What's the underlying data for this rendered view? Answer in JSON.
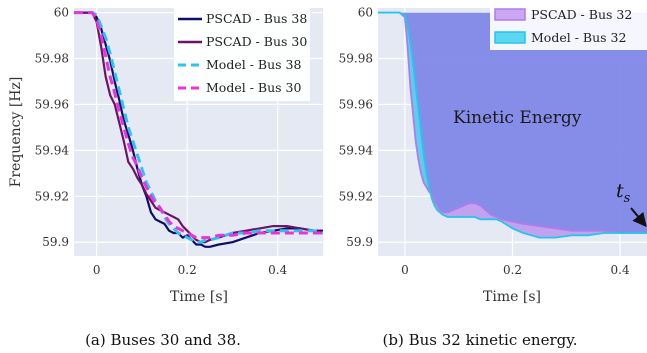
{
  "chart_data": [
    {
      "type": "line",
      "xlabel": "Time [s]",
      "ylabel": "Frequency [Hz]",
      "xlim": [
        -0.05,
        0.5
      ],
      "ylim": [
        59.894,
        60.002
      ],
      "xticks": [
        0,
        0.2,
        0.4
      ],
      "xtick_labels": [
        "0",
        "0.2",
        "0.4"
      ],
      "yticks": [
        59.9,
        59.92,
        59.94,
        59.96,
        59.98,
        60
      ],
      "ytick_labels": [
        "59.9",
        "59.92",
        "59.94",
        "59.96",
        "59.98",
        "60"
      ],
      "grid": true,
      "legend_position": "top-right",
      "caption": "(a) Buses 30 and 38.",
      "series": [
        {
          "name": "PSCAD - Bus 38",
          "color": "#0d0d6b",
          "style": "solid",
          "x": [
            -0.05,
            -0.01,
            0,
            0.01,
            0.02,
            0.03,
            0.04,
            0.05,
            0.06,
            0.07,
            0.08,
            0.09,
            0.1,
            0.11,
            0.12,
            0.13,
            0.14,
            0.15,
            0.16,
            0.17,
            0.18,
            0.19,
            0.2,
            0.21,
            0.22,
            0.23,
            0.24,
            0.25,
            0.27,
            0.3,
            0.33,
            0.36,
            0.39,
            0.42,
            0.45,
            0.48,
            0.5
          ],
          "y": [
            60,
            60,
            59.998,
            59.993,
            59.986,
            59.979,
            59.97,
            59.962,
            59.953,
            59.947,
            59.94,
            59.932,
            59.925,
            59.92,
            59.913,
            59.91,
            59.909,
            59.908,
            59.905,
            59.904,
            59.904,
            59.902,
            59.903,
            59.901,
            59.899,
            59.899,
            59.898,
            59.898,
            59.899,
            59.9,
            59.902,
            59.904,
            59.905,
            59.906,
            59.906,
            59.905,
            59.905
          ]
        },
        {
          "name": "PSCAD - Bus 30",
          "color": "#6b1466",
          "style": "solid",
          "x": [
            -0.05,
            -0.01,
            0,
            0.01,
            0.02,
            0.03,
            0.04,
            0.05,
            0.06,
            0.07,
            0.08,
            0.09,
            0.1,
            0.11,
            0.12,
            0.13,
            0.14,
            0.15,
            0.16,
            0.17,
            0.18,
            0.19,
            0.2,
            0.21,
            0.22,
            0.23,
            0.24,
            0.25,
            0.27,
            0.3,
            0.33,
            0.36,
            0.39,
            0.42,
            0.45,
            0.48,
            0.5
          ],
          "y": [
            60,
            60,
            59.996,
            59.985,
            59.972,
            59.964,
            59.96,
            59.952,
            59.944,
            59.935,
            59.932,
            59.928,
            59.925,
            59.921,
            59.918,
            59.915,
            59.914,
            59.913,
            59.912,
            59.911,
            59.91,
            59.907,
            59.905,
            59.903,
            59.901,
            59.9,
            59.9,
            59.901,
            59.902,
            59.904,
            59.905,
            59.906,
            59.907,
            59.907,
            59.906,
            59.905,
            59.904
          ]
        },
        {
          "name": "Model - Bus 38",
          "color": "#2bc4f0",
          "style": "dashed",
          "x": [
            -0.05,
            -0.01,
            0,
            0.01,
            0.02,
            0.03,
            0.04,
            0.05,
            0.06,
            0.07,
            0.08,
            0.09,
            0.1,
            0.11,
            0.12,
            0.13,
            0.14,
            0.15,
            0.16,
            0.17,
            0.18,
            0.19,
            0.2,
            0.21,
            0.22,
            0.23,
            0.24,
            0.25,
            0.27,
            0.3,
            0.33,
            0.36,
            0.39,
            0.42,
            0.45,
            0.48,
            0.5
          ],
          "y": [
            60,
            60,
            59.999,
            59.994,
            59.989,
            59.982,
            59.974,
            59.966,
            59.958,
            59.95,
            59.944,
            59.938,
            59.932,
            59.926,
            59.922,
            59.918,
            59.915,
            59.911,
            59.908,
            59.906,
            59.904,
            59.903,
            59.902,
            59.901,
            59.9,
            59.9,
            59.901,
            59.901,
            59.902,
            59.904,
            59.904,
            59.905,
            59.905,
            59.905,
            59.905,
            59.905,
            59.904
          ]
        },
        {
          "name": "Model - Bus 30",
          "color": "#ef32d8",
          "style": "dashed",
          "x": [
            -0.05,
            -0.01,
            0,
            0.01,
            0.02,
            0.03,
            0.04,
            0.05,
            0.06,
            0.07,
            0.08,
            0.09,
            0.1,
            0.11,
            0.12,
            0.13,
            0.14,
            0.15,
            0.16,
            0.17,
            0.18,
            0.19,
            0.2,
            0.21,
            0.22,
            0.23,
            0.24,
            0.25,
            0.27,
            0.3,
            0.33,
            0.36,
            0.39,
            0.42,
            0.45,
            0.48,
            0.5
          ],
          "y": [
            60,
            60,
            59.997,
            59.99,
            59.981,
            59.972,
            59.965,
            59.957,
            59.95,
            59.943,
            59.937,
            59.933,
            59.928,
            59.924,
            59.92,
            59.917,
            59.915,
            59.912,
            59.909,
            59.907,
            59.906,
            59.905,
            59.904,
            59.903,
            59.902,
            59.902,
            59.902,
            59.902,
            59.903,
            59.903,
            59.904,
            59.904,
            59.904,
            59.904,
            59.904,
            59.904,
            59.904
          ]
        }
      ]
    },
    {
      "type": "area",
      "xlabel": "Time [s]",
      "ylabel": "",
      "xlim": [
        -0.05,
        0.45
      ],
      "ylim": [
        59.894,
        60.002
      ],
      "xticks": [
        0,
        0.2,
        0.4
      ],
      "xtick_labels": [
        "0",
        "0.2",
        "0.4"
      ],
      "yticks": [
        59.9,
        59.92,
        59.94,
        59.96,
        59.98,
        60
      ],
      "ytick_labels": [
        "59.9",
        "59.92",
        "59.94",
        "59.96",
        "59.98",
        "60"
      ],
      "grid": true,
      "legend_position": "top-right",
      "caption": "(b) Bus 32 kinetic energy.",
      "fill_color": "#7f88e8",
      "annotation": "Kinetic Energy",
      "annotation_ts": "t",
      "annotation_ts_sub": "s",
      "series": [
        {
          "name": "PSCAD - Bus 32",
          "color": "#b07ce8",
          "fill": "#cba6f2",
          "x": [
            -0.05,
            -0.01,
            0,
            0.005,
            0.01,
            0.015,
            0.02,
            0.025,
            0.03,
            0.035,
            0.04,
            0.045,
            0.05,
            0.055,
            0.06,
            0.065,
            0.07,
            0.08,
            0.09,
            0.1,
            0.11,
            0.12,
            0.13,
            0.14,
            0.15,
            0.16,
            0.17,
            0.18,
            0.2,
            0.22,
            0.25,
            0.28,
            0.31,
            0.34,
            0.37,
            0.4,
            0.43,
            0.45
          ],
          "y": [
            60,
            60,
            59.998,
            59.985,
            59.968,
            59.956,
            59.944,
            59.936,
            59.93,
            59.926,
            59.924,
            59.922,
            59.921,
            59.918,
            59.916,
            59.914,
            59.913,
            59.913,
            59.914,
            59.915,
            59.916,
            59.917,
            59.917,
            59.916,
            59.914,
            59.912,
            59.911,
            59.91,
            59.909,
            59.908,
            59.907,
            59.906,
            59.905,
            59.905,
            59.905,
            59.904,
            59.904,
            59.904
          ]
        },
        {
          "name": "Model - Bus 32",
          "color": "#25c6ea",
          "fill": "#5dd6f0",
          "x": [
            -0.05,
            -0.01,
            0,
            0.005,
            0.01,
            0.015,
            0.02,
            0.025,
            0.03,
            0.035,
            0.04,
            0.045,
            0.05,
            0.055,
            0.06,
            0.065,
            0.07,
            0.08,
            0.09,
            0.1,
            0.11,
            0.12,
            0.13,
            0.14,
            0.15,
            0.16,
            0.17,
            0.18,
            0.2,
            0.22,
            0.25,
            0.28,
            0.31,
            0.34,
            0.37,
            0.4,
            0.43,
            0.45
          ],
          "y": [
            60,
            60,
            59.999,
            59.994,
            59.987,
            59.978,
            59.968,
            59.958,
            59.948,
            59.938,
            59.93,
            59.924,
            59.919,
            59.916,
            59.914,
            59.913,
            59.912,
            59.911,
            59.911,
            59.911,
            59.911,
            59.911,
            59.911,
            59.91,
            59.91,
            59.91,
            59.91,
            59.909,
            59.906,
            59.904,
            59.902,
            59.902,
            59.903,
            59.903,
            59.904,
            59.904,
            59.904,
            59.904
          ]
        }
      ]
    }
  ]
}
